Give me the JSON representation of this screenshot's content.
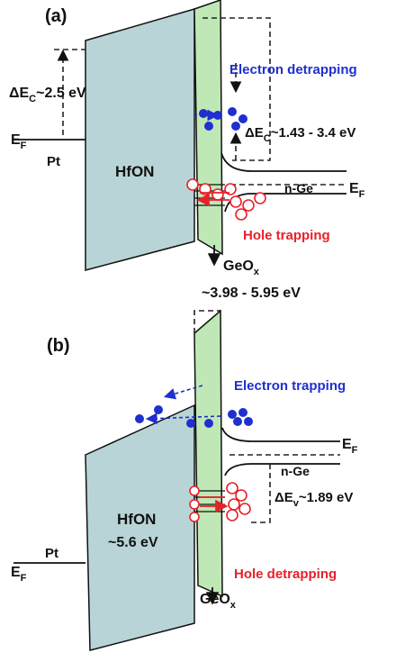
{
  "panels": [
    {
      "label": "(a)",
      "offset_label": {
        "base": "ΔE",
        "sub": "C",
        "tail": "~2.5 eV"
      },
      "metal_fermi": {
        "base": "E",
        "sub": "F"
      },
      "metal": "Pt",
      "dielectric": "HfON",
      "electron_process": "Electron detrapping",
      "interface_offset": {
        "base": "ΔE",
        "sub": "C",
        "tail": "~1.43 - 3.4 eV"
      },
      "semiconductor": "n-Ge",
      "semi_fermi": {
        "base": "E",
        "sub": "F"
      },
      "hole_process": "Hole trapping",
      "interlayer": {
        "base": "GeO",
        "sub": "x"
      },
      "interlayer_gap": "~3.98 - 5.95 eV"
    },
    {
      "label": "(b)",
      "electron_process": "Electron trapping",
      "semi_fermi": {
        "base": "E",
        "sub": "F"
      },
      "semiconductor": "n-Ge",
      "interface_offset": {
        "base": "ΔE",
        "sub": "v",
        "tail": "~1.89 eV"
      },
      "dielectric": "HfON",
      "dielectric_gap": "~5.6 eV",
      "metal": "Pt",
      "metal_fermi": {
        "base": "E",
        "sub": "F"
      },
      "hole_process": "Hole detrapping",
      "interlayer": {
        "base": "GeO",
        "sub": "x"
      }
    }
  ]
}
